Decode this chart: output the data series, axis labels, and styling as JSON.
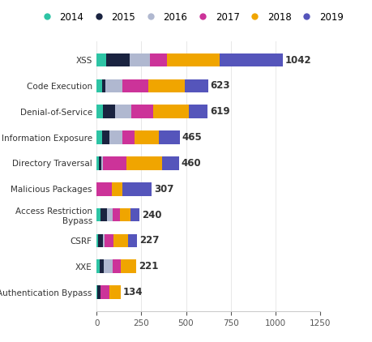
{
  "categories": [
    "XSS",
    "Code Execution",
    "Denial-of-Service",
    "Information Exposure",
    "Directory Traversal",
    "Malicious Packages",
    "Access Restriction\nBypass",
    "CSRF",
    "XXE",
    "Authentication Bypass"
  ],
  "totals": [
    1042,
    623,
    619,
    465,
    460,
    307,
    240,
    227,
    221,
    134
  ],
  "years": [
    "2014",
    "2015",
    "2016",
    "2017",
    "2018",
    "2019"
  ],
  "colors": [
    "#2ec4a5",
    "#1a2340",
    "#b0b8d0",
    "#cc3399",
    "#f0a500",
    "#5555bb"
  ],
  "segments": [
    [
      55,
      130,
      115,
      95,
      295,
      352
    ],
    [
      28,
      20,
      95,
      145,
      205,
      130
    ],
    [
      35,
      70,
      90,
      120,
      200,
      104
    ],
    [
      28,
      42,
      75,
      65,
      140,
      115
    ],
    [
      12,
      15,
      8,
      130,
      200,
      95
    ],
    [
      0,
      0,
      0,
      85,
      60,
      162
    ],
    [
      22,
      35,
      30,
      45,
      55,
      53
    ],
    [
      8,
      25,
      12,
      50,
      80,
      52
    ],
    [
      18,
      20,
      50,
      48,
      85,
      0
    ],
    [
      5,
      15,
      0,
      50,
      64,
      0
    ]
  ],
  "legend_labels": [
    "2014",
    "2015",
    "2016",
    "2017",
    "2018",
    "2019"
  ],
  "xlim": [
    0,
    1250
  ],
  "xticks": [
    0,
    250,
    500,
    750,
    1000,
    1250
  ],
  "background_color": "#ffffff",
  "bar_height": 0.52,
  "fontsize_labels": 7.5,
  "fontsize_totals": 8.5,
  "fontsize_ticks": 7.5,
  "fontsize_legend": 8.5,
  "label_color": "#333333",
  "grid_color": "#e8e8e8",
  "spine_color": "#cccccc"
}
